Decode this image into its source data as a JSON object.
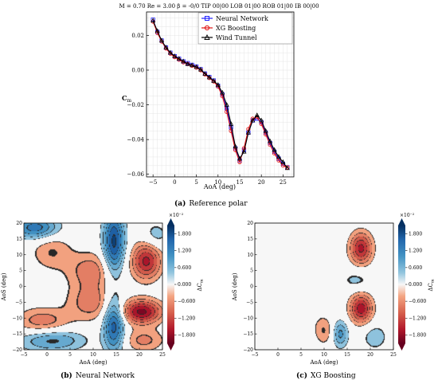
{
  "figure": {
    "caption_a_tag": "(a)",
    "caption_a_text": "Reference polar",
    "caption_b_tag": "(b)",
    "caption_b_text": "Neural Network",
    "caption_c_tag": "(c)",
    "caption_c_text": "XG Boosting"
  },
  "chart_data": [
    {
      "type": "line",
      "title": "M = 0.70 Re = 3.00 β = -0/0 TIP 00|00 LOB 01|00 ROB 01|00 IB 00|00",
      "xlabel": "AoA (deg)",
      "ylabel": "Cm",
      "xlim": [
        -6.5,
        27.5
      ],
      "ylim": [
        -0.0615,
        0.0335
      ],
      "xticks": [
        -5,
        0,
        5,
        10,
        15,
        20,
        25
      ],
      "yticks": [
        0.02,
        0.0,
        -0.02,
        -0.04,
        -0.06
      ],
      "ytick_labels": [
        "0.02",
        "0.00",
        "−0.02",
        "−0.04",
        "−0.06"
      ],
      "grid": true,
      "legend": "top-right",
      "x": [
        -5,
        -4,
        -3,
        -2,
        -1,
        0,
        1,
        2,
        3,
        4,
        5,
        6,
        7,
        8,
        9,
        10,
        11,
        12,
        13,
        14,
        15,
        16,
        17,
        18,
        19,
        20,
        21,
        22,
        23,
        24,
        25,
        26
      ],
      "series": [
        {
          "name": "Neural Network",
          "color": "#1f1fff",
          "marker": "square",
          "values": [
            0.029,
            0.022,
            0.017,
            0.013,
            0.01,
            0.008,
            0.0065,
            0.005,
            0.004,
            0.003,
            0.002,
            0.0005,
            -0.002,
            -0.004,
            -0.006,
            -0.009,
            -0.014,
            -0.022,
            -0.033,
            -0.045,
            -0.052,
            -0.046,
            -0.036,
            -0.029,
            -0.028,
            -0.03,
            -0.036,
            -0.042,
            -0.047,
            -0.051,
            -0.054,
            -0.056
          ]
        },
        {
          "name": "XG Boosting",
          "color": "#e01010",
          "marker": "circle",
          "values": [
            0.028,
            0.0215,
            0.0165,
            0.0125,
            0.0095,
            0.0075,
            0.006,
            0.0045,
            0.0035,
            0.0025,
            0.0015,
            0.0,
            -0.0025,
            -0.0045,
            -0.0065,
            -0.0095,
            -0.015,
            -0.024,
            -0.035,
            -0.046,
            -0.053,
            -0.045,
            -0.034,
            -0.028,
            -0.027,
            -0.031,
            -0.037,
            -0.043,
            -0.048,
            -0.052,
            -0.055,
            -0.056
          ]
        },
        {
          "name": "Wind Tunnel",
          "color": "#000000",
          "marker": "triangle",
          "values": [
            0.0285,
            0.0225,
            0.017,
            0.013,
            0.01,
            0.008,
            0.0065,
            0.005,
            0.0035,
            0.0028,
            0.0018,
            0.0003,
            -0.0022,
            -0.0042,
            -0.0062,
            -0.0085,
            -0.013,
            -0.02,
            -0.031,
            -0.044,
            -0.051,
            -0.047,
            -0.036,
            -0.029,
            -0.026,
            -0.029,
            -0.035,
            -0.041,
            -0.046,
            -0.05,
            -0.053,
            -0.0565
          ]
        }
      ]
    },
    {
      "type": "heatmap",
      "title": "",
      "xlabel": "AoA (deg)",
      "ylabel": "AoS (deg)",
      "xlim": [
        -5,
        25
      ],
      "ylim": [
        -20,
        20
      ],
      "xticks": [
        -5,
        0,
        5,
        10,
        15,
        20,
        25
      ],
      "yticks": [
        20,
        15,
        10,
        5,
        0,
        -5,
        -10,
        -15,
        -20
      ],
      "ytick_labels": [
        "20",
        "15",
        "10",
        "5",
        "0",
        "−5",
        "−10",
        "−15",
        "−20"
      ],
      "colorbar_label": "ΔCm",
      "colorbar_exponent": "×10⁻²",
      "colorbar_ticks": [
        1.8,
        1.2,
        0.6,
        0.0,
        -0.6,
        -1.2,
        -1.8
      ],
      "colorbar_tick_labels": [
        "1.800",
        "1.200",
        "0.600",
        "0.000",
        "−0.600",
        "−1.200",
        "−1.800"
      ],
      "vrange": [
        -2.1,
        2.1
      ],
      "features": [
        {
          "kind": "blob",
          "aoa": 14.5,
          "aos": 14,
          "sx": 1.6,
          "sy": 7,
          "amp": 1.9
        },
        {
          "kind": "blob",
          "aoa": 14.5,
          "aos": -12,
          "sx": 1.6,
          "sy": 6,
          "amp": 1.7
        },
        {
          "kind": "blob",
          "aoa": 21.5,
          "aos": 8,
          "sx": 2.2,
          "sy": 4,
          "amp": -1.6
        },
        {
          "kind": "blob",
          "aoa": 20.5,
          "aos": -8,
          "sx": 3.0,
          "sy": 2.6,
          "amp": -1.9
        },
        {
          "kind": "blob",
          "aoa": 9.5,
          "aos": 5,
          "sx": 3.5,
          "sy": 4,
          "amp": -0.8
        },
        {
          "kind": "blob",
          "aoa": 9.5,
          "aos": -5,
          "sx": 3.5,
          "sy": 4,
          "amp": -0.8
        },
        {
          "kind": "blob",
          "aoa": -2.5,
          "aos": 18.5,
          "sx": 3.5,
          "sy": 2.5,
          "amp": 1.4
        },
        {
          "kind": "blob",
          "aoa": 1,
          "aos": 11,
          "sx": 3,
          "sy": 4,
          "amp": -0.6
        },
        {
          "kind": "blob",
          "aoa": -1,
          "aos": -11,
          "sx": 4,
          "sy": 3,
          "amp": -0.8
        },
        {
          "kind": "blob",
          "aoa": 1,
          "aos": -17,
          "sx": 5,
          "sy": 2.5,
          "amp": 1.0
        },
        {
          "kind": "blob",
          "aoa": 21,
          "aos": -17,
          "sx": 3,
          "sy": 2.5,
          "amp": -0.7
        },
        {
          "kind": "blob",
          "aoa": 23.5,
          "aos": 16,
          "sx": 2,
          "sy": 3,
          "amp": 0.5
        }
      ]
    },
    {
      "type": "heatmap",
      "title": "",
      "xlabel": "AoA (deg)",
      "ylabel": "AoS (deg)",
      "xlim": [
        -5,
        25
      ],
      "ylim": [
        -20,
        20
      ],
      "xticks": [
        -5,
        0,
        5,
        10,
        15,
        20,
        25
      ],
      "yticks": [
        20,
        15,
        10,
        5,
        0,
        -5,
        -10,
        -15,
        -20
      ],
      "ytick_labels": [
        "20",
        "15",
        "10",
        "5",
        "0",
        "−5",
        "−10",
        "−15",
        "−20"
      ],
      "colorbar_label": "ΔCm",
      "colorbar_exponent": "×10⁻²",
      "colorbar_ticks": [
        1.8,
        1.2,
        0.6,
        0.0,
        -0.6,
        -1.2,
        -1.8
      ],
      "colorbar_tick_labels": [
        "1.800",
        "1.200",
        "0.600",
        "0.000",
        "−0.600",
        "−1.200",
        "−1.800"
      ],
      "vrange": [
        -2.1,
        2.1
      ],
      "features": [
        {
          "kind": "blob",
          "aoa": 18,
          "aos": 12,
          "sx": 1.7,
          "sy": 3.5,
          "amp": -1.6
        },
        {
          "kind": "blob",
          "aoa": 18,
          "aos": -7,
          "sx": 1.7,
          "sy": 3.2,
          "amp": -1.7
        },
        {
          "kind": "blob",
          "aoa": 13.5,
          "aos": -15,
          "sx": 1.2,
          "sy": 3,
          "amp": 1.0
        },
        {
          "kind": "blob",
          "aoa": 10,
          "aos": -14,
          "sx": 1.4,
          "sy": 3,
          "amp": -0.6
        },
        {
          "kind": "blob",
          "aoa": 17,
          "aos": 2,
          "sx": 2.5,
          "sy": 2.5,
          "amp": 0.4
        },
        {
          "kind": "blob",
          "aoa": 21,
          "aos": -16,
          "sx": 2,
          "sy": 3,
          "amp": 0.5
        },
        {
          "kind": "blob",
          "aoa": 0,
          "aos": 15,
          "sx": 3,
          "sy": 3,
          "amp": 0.2
        },
        {
          "kind": "blob",
          "aoa": 5,
          "aos": -5,
          "sx": 3,
          "sy": 6,
          "amp": -0.25
        }
      ]
    }
  ]
}
